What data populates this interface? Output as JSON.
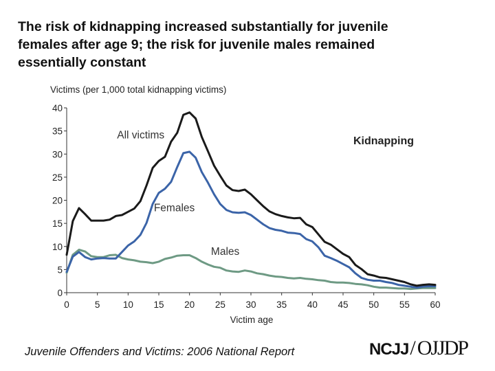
{
  "title_lines": [
    "The risk of kidnapping increased substantially for juvenile",
    "females after age 9; the risk for juvenile males remained",
    "essentially constant"
  ],
  "footer": {
    "source": "Juvenile Offenders and Victims: 2006 National Report",
    "logo_left": "NCJJ",
    "logo_sep": "/",
    "logo_right": "OJJDP"
  },
  "chart_data": {
    "type": "line",
    "title": "Kidnapping",
    "xlabel": "Victim age",
    "ylabel": "Victims (per 1,000 total kidnapping victims)",
    "xlim": [
      0,
      60
    ],
    "ylim": [
      0,
      40
    ],
    "xticks": [
      0,
      5,
      10,
      15,
      20,
      25,
      30,
      35,
      40,
      45,
      50,
      55,
      60
    ],
    "yticks": [
      0,
      5,
      10,
      15,
      20,
      25,
      30,
      35,
      40
    ],
    "series": [
      {
        "name": "All victims",
        "color": "#1a1a1a",
        "label_at": [
          8.2,
          33.4
        ],
        "x": [
          0,
          1,
          2,
          3,
          4,
          5,
          6,
          7,
          8,
          9,
          10,
          11,
          12,
          13,
          14,
          15,
          16,
          17,
          18,
          19,
          20,
          21,
          22,
          23,
          24,
          25,
          26,
          27,
          28,
          29,
          30,
          31,
          32,
          33,
          34,
          35,
          36,
          37,
          38,
          39,
          40,
          41,
          42,
          43,
          44,
          45,
          46,
          47,
          48,
          49,
          50,
          51,
          52,
          53,
          54,
          55,
          56,
          57,
          58,
          59,
          60
        ],
        "y": [
          8.2,
          15.5,
          18.3,
          17,
          15.6,
          15.6,
          15.6,
          15.8,
          16.6,
          16.8,
          17.5,
          18.2,
          19.8,
          23.2,
          27,
          28.5,
          29.4,
          32.7,
          34.6,
          38.5,
          39,
          37.7,
          33.7,
          30.6,
          27.5,
          25.3,
          23.2,
          22.2,
          22,
          22.3,
          21.3,
          20,
          18.7,
          17.6,
          17,
          16.6,
          16.3,
          16.1,
          16.2,
          14.8,
          14.2,
          12.6,
          11,
          10.4,
          9.4,
          8.4,
          7.7,
          6,
          5.1,
          4,
          3.7,
          3.3,
          3.2,
          2.9,
          2.6,
          2.3,
          1.8,
          1.5,
          1.7,
          1.8,
          1.7
        ]
      },
      {
        "name": "Females",
        "color": "#3b64a8",
        "label_at": [
          14.2,
          17.6
        ],
        "x": [
          0,
          1,
          2,
          3,
          4,
          5,
          6,
          7,
          8,
          9,
          10,
          11,
          12,
          13,
          14,
          15,
          16,
          17,
          18,
          19,
          20,
          21,
          22,
          23,
          24,
          25,
          26,
          27,
          28,
          29,
          30,
          31,
          32,
          33,
          34,
          35,
          36,
          37,
          38,
          39,
          40,
          41,
          42,
          43,
          44,
          45,
          46,
          47,
          48,
          49,
          50,
          51,
          52,
          53,
          54,
          55,
          56,
          57,
          58,
          59,
          60
        ],
        "y": [
          4.5,
          7.8,
          8.8,
          7.7,
          7.2,
          7.4,
          7.5,
          7.4,
          7.4,
          8.8,
          10.2,
          11.1,
          12.5,
          15.1,
          19.2,
          21.6,
          22.5,
          24,
          27.2,
          30.2,
          30.5,
          29.2,
          26.1,
          23.8,
          21.3,
          19.2,
          17.9,
          17.4,
          17.3,
          17.4,
          16.8,
          15.8,
          14.8,
          14,
          13.6,
          13.4,
          13,
          12.9,
          12.7,
          11.6,
          11.1,
          9.8,
          8,
          7.5,
          6.9,
          6.2,
          5.5,
          4.2,
          3.2,
          2.8,
          2.6,
          2.6,
          2.3,
          2.1,
          1.7,
          1.5,
          1.3,
          1.1,
          1.3,
          1.4,
          1.4
        ]
      },
      {
        "name": "Males",
        "color": "#6e9a84",
        "label_at": [
          23.5,
          8.2
        ],
        "x": [
          0,
          1,
          2,
          3,
          4,
          5,
          6,
          7,
          8,
          9,
          10,
          11,
          12,
          13,
          14,
          15,
          16,
          17,
          18,
          19,
          20,
          21,
          22,
          23,
          24,
          25,
          26,
          27,
          28,
          29,
          30,
          31,
          32,
          33,
          34,
          35,
          36,
          37,
          38,
          39,
          40,
          41,
          42,
          43,
          44,
          45,
          46,
          47,
          48,
          49,
          50,
          51,
          52,
          53,
          54,
          55,
          56,
          57,
          58,
          59,
          60
        ],
        "y": [
          4.3,
          8.2,
          9.3,
          8.9,
          7.9,
          7.7,
          7.7,
          8.1,
          8.2,
          7.5,
          7.2,
          7,
          6.7,
          6.6,
          6.4,
          6.7,
          7.3,
          7.6,
          8,
          8.1,
          8.1,
          7.5,
          6.7,
          6.1,
          5.6,
          5.4,
          4.8,
          4.6,
          4.5,
          4.8,
          4.6,
          4.2,
          4,
          3.7,
          3.5,
          3.4,
          3.2,
          3.1,
          3.2,
          3,
          2.9,
          2.7,
          2.6,
          2.3,
          2.2,
          2.2,
          2.1,
          1.9,
          1.8,
          1.6,
          1.3,
          1.1,
          1.1,
          1,
          0.9,
          0.9,
          0.8,
          0.9,
          1,
          1,
          1
        ]
      }
    ]
  }
}
